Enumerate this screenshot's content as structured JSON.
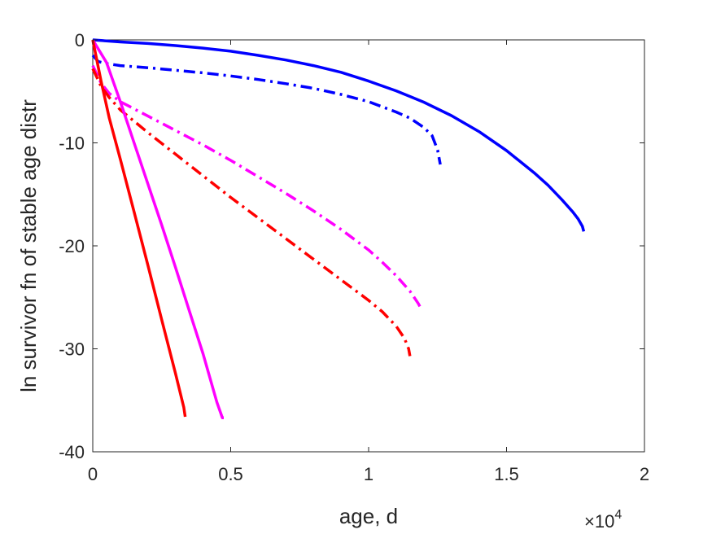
{
  "chart_data": {
    "type": "line",
    "xlabel": "age, d",
    "ylabel": "ln survivor fn of stable age distr",
    "x_exponent_label": "×10",
    "x_exponent_power": "4",
    "xlim": [
      0,
      20000
    ],
    "ylim": [
      -40,
      0
    ],
    "x_ticks": [
      0,
      5000,
      10000,
      15000,
      20000
    ],
    "x_tick_labels": [
      "0",
      "0.5",
      "1",
      "1.5",
      "2"
    ],
    "y_ticks": [
      0,
      -10,
      -20,
      -30,
      -40
    ],
    "y_tick_labels": [
      "0",
      "-10",
      "-20",
      "-30",
      "-40"
    ],
    "grid": false,
    "series": [
      {
        "color": "#0000FF",
        "style": "solid",
        "x": [
          0,
          1000,
          2000,
          3000,
          4000,
          5000,
          6000,
          7000,
          8000,
          9000,
          10000,
          11000,
          12000,
          13000,
          14000,
          15000,
          16000,
          16500,
          17000,
          17400,
          17600,
          17750,
          17800
        ],
        "y": [
          0,
          -0.2,
          -0.35,
          -0.55,
          -0.8,
          -1.1,
          -1.5,
          -1.95,
          -2.5,
          -3.15,
          -4.0,
          -4.95,
          -6.05,
          -7.35,
          -8.9,
          -10.75,
          -12.9,
          -14.1,
          -15.5,
          -16.7,
          -17.4,
          -18.1,
          -18.6
        ]
      },
      {
        "color": "#0000FF",
        "style": "dashdot",
        "x": [
          0,
          200,
          500,
          1000,
          2000,
          3000,
          4000,
          5000,
          6000,
          7000,
          8000,
          9000,
          10000,
          11000,
          11500,
          12000,
          12300,
          12500,
          12600
        ],
        "y": [
          -1.5,
          -2.1,
          -2.3,
          -2.5,
          -2.7,
          -2.95,
          -3.2,
          -3.5,
          -3.85,
          -4.25,
          -4.7,
          -5.3,
          -6.0,
          -7.0,
          -7.6,
          -8.5,
          -9.3,
          -10.7,
          -12.1
        ]
      },
      {
        "color": "#FF00FF",
        "style": "dashdot",
        "x": [
          0,
          300,
          600,
          1000,
          2000,
          3000,
          4000,
          5000,
          6000,
          7000,
          8000,
          9000,
          10000,
          10500,
          11000,
          11500,
          11800,
          11900
        ],
        "y": [
          -2.5,
          -4.2,
          -5.2,
          -6.0,
          -7.4,
          -8.8,
          -10.2,
          -11.7,
          -13.3,
          -14.9,
          -16.6,
          -18.4,
          -20.4,
          -21.6,
          -22.9,
          -24.4,
          -25.6,
          -26.1
        ]
      },
      {
        "color": "#FF0000",
        "style": "dashdot",
        "x": [
          0,
          300,
          600,
          1000,
          2000,
          3000,
          4000,
          5000,
          6000,
          7000,
          8000,
          9000,
          10000,
          10500,
          11000,
          11300,
          11450,
          11500
        ],
        "y": [
          -2.8,
          -4.5,
          -5.6,
          -6.8,
          -9.0,
          -11.1,
          -13.2,
          -15.3,
          -17.3,
          -19.3,
          -21.3,
          -23.3,
          -25.3,
          -26.4,
          -27.8,
          -29.0,
          -30.0,
          -30.7
        ]
      },
      {
        "color": "#FF00FF",
        "style": "solid",
        "x": [
          0,
          500,
          1000,
          1500,
          2000,
          2500,
          3000,
          3500,
          4000,
          4500,
          4700,
          4750
        ],
        "y": [
          0,
          -2.2,
          -6.0,
          -10.0,
          -14.0,
          -18.0,
          -22.1,
          -26.3,
          -30.5,
          -35.2,
          -36.7,
          -36.7
        ]
      },
      {
        "color": "#FF0000",
        "style": "solid",
        "x": [
          0,
          300,
          600,
          1000,
          1500,
          2000,
          2500,
          3000,
          3200,
          3300,
          3350
        ],
        "y": [
          0,
          -4.0,
          -7.6,
          -11.6,
          -16.7,
          -21.9,
          -27.2,
          -32.4,
          -34.6,
          -35.7,
          -36.6
        ]
      }
    ]
  }
}
